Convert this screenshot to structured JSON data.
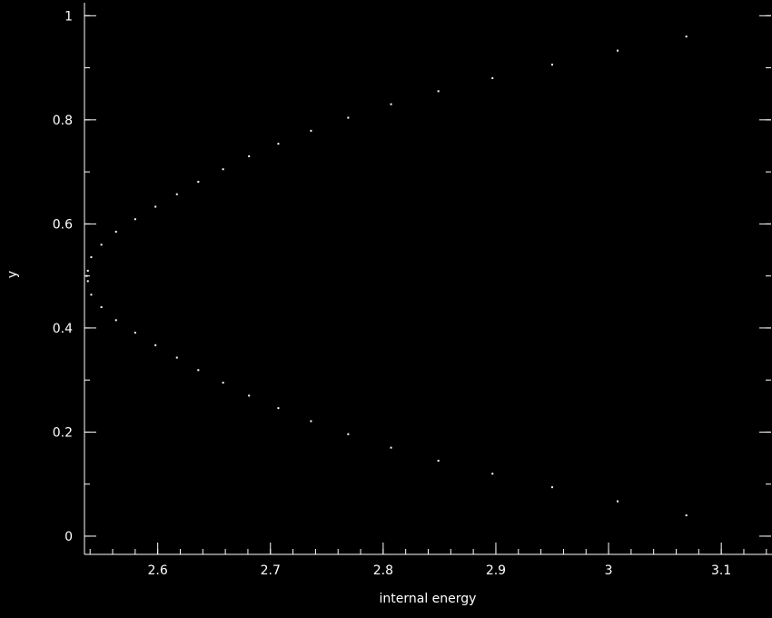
{
  "chart_data": {
    "type": "scatter",
    "title": "",
    "xlabel": "internal energy",
    "ylabel": "y",
    "xlim": [
      2.535,
      3.145
    ],
    "ylim": [
      -0.035,
      1.025
    ],
    "xticks": [
      2.6,
      2.7,
      2.8,
      2.9,
      3.0,
      3.1
    ],
    "xtick_labels": [
      "2.6",
      "2.7",
      "2.8",
      "2.9",
      "3",
      "3.1"
    ],
    "yticks": [
      0,
      0.2,
      0.4,
      0.6,
      0.8,
      1.0
    ],
    "ytick_labels": [
      "0",
      "0.2",
      "0.4",
      "0.6",
      "0.8",
      "1"
    ],
    "x_minor_step": 0.02,
    "y_minor_step": 0.1,
    "grid": false,
    "colors": {
      "background": "#000000",
      "foreground": "#ffffff"
    },
    "series": [
      {
        "x": [
          3.069,
          3.008,
          2.95,
          2.897,
          2.849,
          2.807,
          2.769,
          2.736,
          2.707,
          2.681,
          2.658,
          2.636,
          2.617,
          2.598,
          2.58,
          2.563,
          2.55,
          2.541,
          2.538,
          2.537,
          2.538,
          2.541,
          2.55,
          2.563,
          2.58,
          2.598,
          2.617,
          2.636,
          2.658,
          2.681,
          2.707,
          2.736,
          2.769,
          2.807,
          2.849,
          2.897,
          2.95,
          3.008,
          3.069
        ],
        "y": [
          0.04,
          0.067,
          0.094,
          0.12,
          0.145,
          0.17,
          0.196,
          0.221,
          0.246,
          0.27,
          0.295,
          0.319,
          0.343,
          0.367,
          0.391,
          0.415,
          0.44,
          0.464,
          0.49,
          0.5,
          0.51,
          0.536,
          0.56,
          0.585,
          0.609,
          0.633,
          0.657,
          0.681,
          0.705,
          0.73,
          0.754,
          0.779,
          0.804,
          0.83,
          0.855,
          0.88,
          0.906,
          0.933,
          0.96
        ]
      }
    ]
  }
}
